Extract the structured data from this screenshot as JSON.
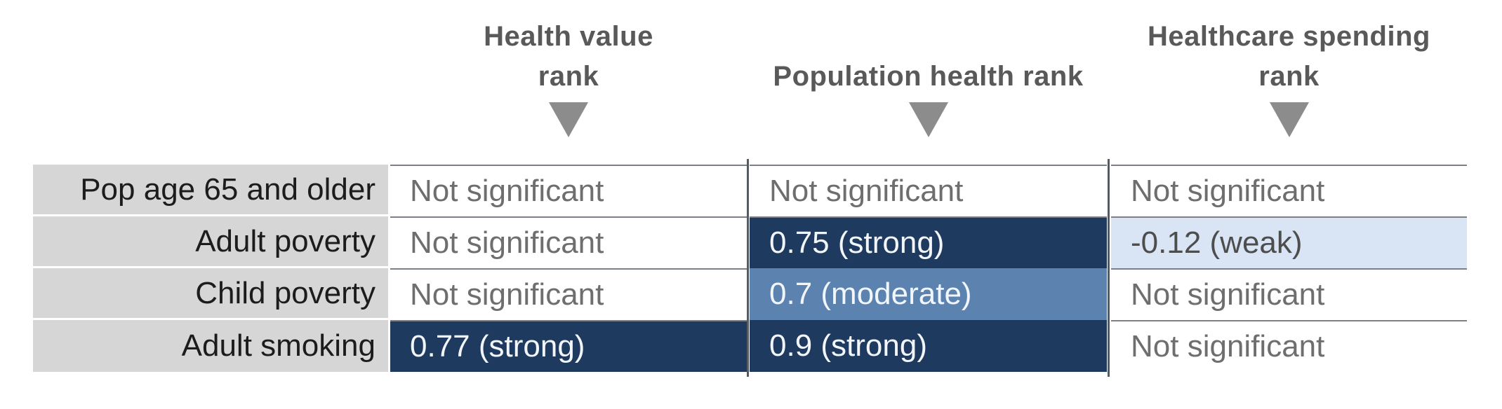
{
  "chart_data": {
    "type": "heatmap",
    "columns": [
      "Health value rank",
      "Population health rank",
      "Healthcare spending rank"
    ],
    "rows": [
      "Pop age 65 and older",
      "Adult poverty",
      "Child poverty",
      "Adult smoking"
    ],
    "cells": [
      [
        "Not significant",
        "Not significant",
        "Not significant"
      ],
      [
        "Not significant",
        "0.75 (strong)",
        "-0.12 (weak)"
      ],
      [
        "Not significant",
        "0.7 (moderate)",
        "Not significant"
      ],
      [
        "0.77 (strong)",
        "0.9 (strong)",
        "Not significant"
      ]
    ],
    "values": [
      [
        null,
        null,
        null
      ],
      [
        null,
        0.75,
        -0.12
      ],
      [
        null,
        0.7,
        null
      ],
      [
        0.77,
        0.9,
        null
      ]
    ],
    "strength_scale": [
      "weak",
      "moderate",
      "strong"
    ],
    "colors": {
      "strong": "#1E3A5F",
      "moderate": "#5C83B0",
      "weak": "#D9E4F4",
      "not_significant": "#FFFFFF",
      "row_label_bg": "#D6D6D6",
      "header_text": "#595959",
      "arrow": "#8C8C8C"
    }
  },
  "header": {
    "cols": [
      {
        "lines": [
          "Health value",
          "rank"
        ]
      },
      {
        "lines": [
          "",
          "Population health rank"
        ]
      },
      {
        "lines": [
          "Healthcare spending",
          "rank"
        ]
      }
    ]
  },
  "table": {
    "rows": [
      {
        "label": "Pop age 65 and older",
        "cells": [
          {
            "text": "Not significant",
            "level": "none"
          },
          {
            "text": "Not significant",
            "level": "none"
          },
          {
            "text": "Not significant",
            "level": "none"
          }
        ]
      },
      {
        "label": "Adult poverty",
        "cells": [
          {
            "text": "Not significant",
            "level": "none"
          },
          {
            "text": "0.75 (strong)",
            "level": "strong"
          },
          {
            "text": "-0.12 (weak)",
            "level": "weak"
          }
        ]
      },
      {
        "label": "Child poverty",
        "cells": [
          {
            "text": "Not significant",
            "level": "none"
          },
          {
            "text": "0.7 (moderate)",
            "level": "moderate"
          },
          {
            "text": "Not significant",
            "level": "none"
          }
        ]
      },
      {
        "label": "Adult smoking",
        "cells": [
          {
            "text": "0.77 (strong)",
            "level": "strong"
          },
          {
            "text": "0.9 (strong)",
            "level": "strong"
          },
          {
            "text": "Not significant",
            "level": "none"
          }
        ]
      }
    ]
  }
}
